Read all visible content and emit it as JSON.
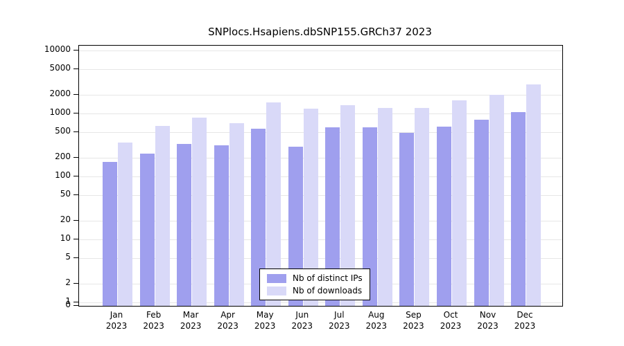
{
  "title": "SNPlocs.Hsapiens.dbSNP155.GRCh37 2023",
  "chart_data": {
    "type": "bar",
    "scale": "log",
    "title": "SNPlocs.Hsapiens.dbSNP155.GRCh37 2023",
    "year": "2023",
    "categories": [
      "Jan",
      "Feb",
      "Mar",
      "Apr",
      "May",
      "Jun",
      "Jul",
      "Aug",
      "Sep",
      "Oct",
      "Nov",
      "Dec"
    ],
    "series": [
      {
        "name": "Nb of distinct IPs",
        "color": "#9f9fee",
        "values": [
          170,
          230,
          330,
          310,
          580,
          300,
          600,
          600,
          490,
          620,
          790,
          1050
        ]
      },
      {
        "name": "Nb of downloads",
        "color": "#d9d9f8",
        "values": [
          350,
          640,
          850,
          710,
          1500,
          1200,
          1350,
          1220,
          1230,
          1600,
          2000,
          2900
        ]
      }
    ],
    "y_ticks": [
      0,
      1,
      2,
      5,
      10,
      20,
      50,
      100,
      200,
      500,
      1000,
      2000,
      5000,
      10000
    ],
    "ylim": [
      0,
      10000
    ],
    "grid": true,
    "legend_position": "bottom-center",
    "gridline_color": "#e6e6e6",
    "axis_color": "#000000"
  }
}
